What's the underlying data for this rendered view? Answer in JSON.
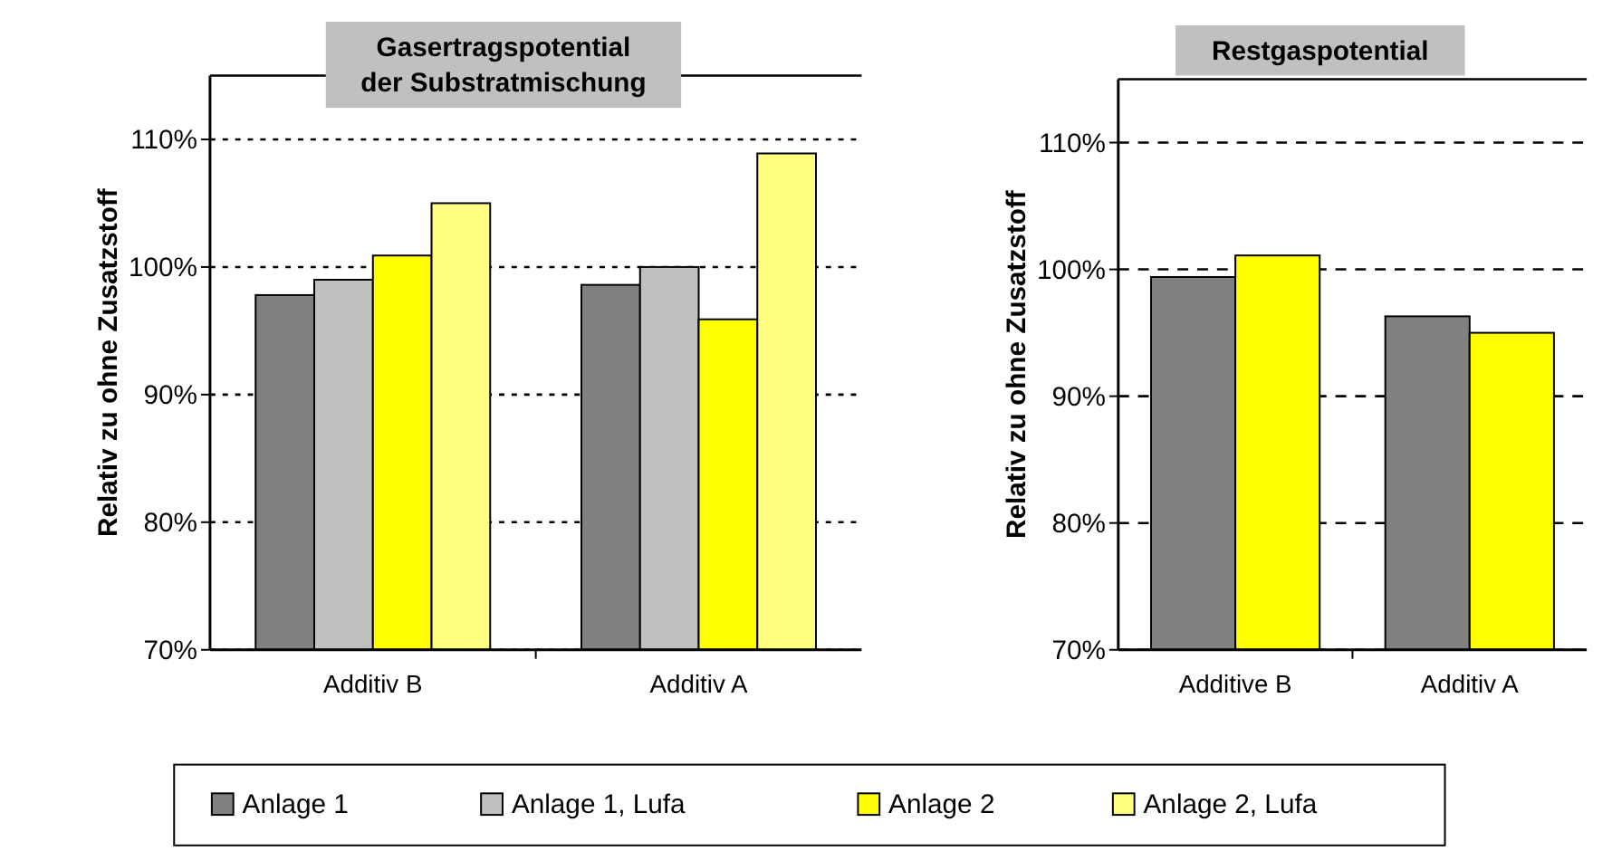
{
  "chart_data": [
    {
      "type": "bar",
      "title": "Gasertragspotential der Substratmischung",
      "ylabel": "Relativ zu ohne Zusatzstoff",
      "categories": [
        "Additiv B",
        "Additiv A"
      ],
      "series": [
        {
          "name": "Anlage 1",
          "color": "#808080",
          "values": [
            97.8,
            98.6
          ]
        },
        {
          "name": "Anlage 1, Lufa",
          "color": "#c0c0c0",
          "values": [
            99.0,
            100.0
          ]
        },
        {
          "name": "Anlage 2",
          "color": "#ffff00",
          "values": [
            100.9,
            95.9
          ]
        },
        {
          "name": "Anlage 2, Lufa",
          "color": "#ffff80",
          "values": [
            105.0,
            108.9
          ]
        }
      ],
      "ylim": [
        70,
        115
      ],
      "yticks": [
        {
          "value": 70,
          "label": "70%"
        },
        {
          "value": 80,
          "label": "80%"
        },
        {
          "value": 90,
          "label": "90%"
        },
        {
          "value": 100,
          "label": "100%"
        },
        {
          "value": 110,
          "label": "110%"
        }
      ],
      "grid": "y",
      "line_style": "dotted",
      "legend": "bottom"
    },
    {
      "type": "bar",
      "title": "Restgaspotential",
      "ylabel": "Relativ zu ohne Zusatzstoff",
      "categories": [
        "Additive B",
        "Additiv A"
      ],
      "series": [
        {
          "color": "#808080",
          "values": [
            99.4,
            96.3
          ]
        },
        {
          "color": "#ffff00",
          "values": [
            101.1,
            95.0
          ]
        }
      ],
      "ylim": [
        70,
        115
      ],
      "yticks": [
        {
          "value": 70,
          "label": "70%"
        },
        {
          "value": 80,
          "label": "80%"
        },
        {
          "value": 90,
          "label": "90%"
        },
        {
          "value": 100,
          "label": "100%"
        },
        {
          "value": 110,
          "label": "110%"
        }
      ],
      "grid": "y",
      "line_style": "dashed"
    }
  ]
}
